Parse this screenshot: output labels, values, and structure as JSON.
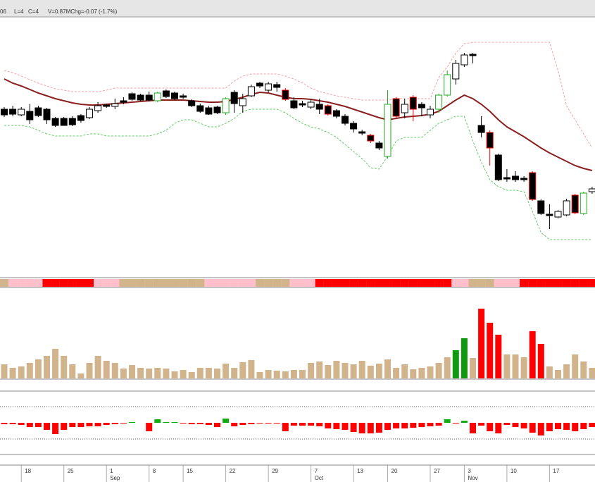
{
  "status": {
    "items": [
      "06",
      "L=4",
      "C=4",
      "V=0.87MChg=-0.07 (-1.7%)"
    ]
  },
  "chart_data": [
    {
      "type": "candlestick",
      "categories": [
        null,
        null,
        "18",
        null,
        null,
        null,
        null,
        "25",
        null,
        null,
        null,
        null,
        "1",
        null,
        null,
        null,
        null,
        "8",
        null,
        null,
        null,
        "15",
        null,
        null,
        null,
        null,
        "22",
        null,
        null,
        null,
        null,
        "29",
        null,
        null,
        null,
        null,
        "7",
        null,
        null,
        null,
        null,
        "13",
        null,
        null,
        null,
        "20",
        null,
        null,
        null,
        null,
        "27",
        null,
        null,
        null,
        "3",
        null,
        null,
        null,
        null,
        "10",
        null,
        null,
        null,
        null,
        "17",
        null,
        null,
        null,
        null,
        null
      ],
      "months": [
        null,
        null,
        null,
        null,
        null,
        null,
        null,
        null,
        null,
        null,
        null,
        null,
        "Sep",
        null,
        null,
        null,
        null,
        null,
        null,
        null,
        null,
        null,
        null,
        null,
        null,
        null,
        null,
        null,
        null,
        null,
        null,
        null,
        null,
        null,
        null,
        null,
        "Oct",
        null,
        null,
        null,
        null,
        null,
        null,
        null,
        null,
        null,
        null,
        null,
        null,
        null,
        null,
        null,
        null,
        null,
        "Nov",
        null,
        null,
        null,
        null,
        null,
        null,
        null,
        null,
        null,
        null,
        null,
        null,
        null,
        null,
        null
      ],
      "open": [
        245,
        245,
        237,
        242,
        247,
        245,
        232,
        232,
        232,
        236,
        233,
        243,
        251,
        249,
        257,
        267,
        265,
        265,
        257,
        271,
        268,
        264,
        257,
        250,
        247,
        248,
        240,
        269,
        250,
        264,
        282,
        272,
        280,
        272,
        257,
        253,
        248,
        252,
        250,
        243,
        235,
        225,
        213,
        208,
        197,
        178,
        260,
        240,
        262,
        252,
        237,
        245,
        265,
        288,
        308,
        323,
        222,
        212,
        180,
        148,
        150,
        147,
        155,
        115,
        96,
        92,
        95,
        123,
        97,
        128
      ],
      "high": [
        248,
        250,
        248,
        252,
        250,
        247,
        234,
        234,
        235,
        238,
        248,
        255,
        253,
        260,
        262,
        269,
        267,
        270,
        270,
        273,
        270,
        267,
        259,
        253,
        250,
        250,
        262,
        272,
        267,
        280,
        284,
        284,
        284,
        275,
        262,
        257,
        259,
        260,
        252,
        245,
        238,
        228,
        216,
        210,
        200,
        272,
        262,
        260,
        265,
        255,
        250,
        267,
        300,
        315,
        325,
        325,
        235,
        215,
        182,
        160,
        157,
        150,
        157,
        117,
        110,
        102,
        118,
        125,
        128,
        135
      ],
      "low": [
        234,
        235,
        235,
        224,
        234,
        224,
        220,
        222,
        221,
        226,
        231,
        240,
        247,
        245,
        252,
        257,
        257,
        256,
        255,
        261,
        258,
        260,
        248,
        240,
        237,
        238,
        237,
        240,
        240,
        262,
        275,
        269,
        270,
        257,
        245,
        248,
        245,
        238,
        236,
        232,
        222,
        212,
        208,
        197,
        187,
        175,
        233,
        232,
        228,
        235,
        232,
        240,
        263,
        280,
        305,
        310,
        205,
        165,
        143,
        142,
        142,
        142,
        115,
        95,
        75,
        90,
        93,
        96,
        95,
        125
      ],
      "close": [
        237,
        238,
        245,
        230,
        236,
        230,
        222,
        222,
        223,
        229,
        245,
        250,
        249,
        253,
        255,
        259,
        258,
        258,
        268,
        263,
        260,
        262,
        250,
        242,
        238,
        240,
        260,
        253,
        260,
        277,
        278,
        281,
        276,
        259,
        247,
        251,
        255,
        245,
        238,
        235,
        225,
        217,
        211,
        200,
        190,
        252,
        235,
        252,
        245,
        247,
        245,
        265,
        294,
        310,
        322,
        321,
        212,
        190,
        145,
        146,
        145,
        145,
        117,
        97,
        94,
        100,
        115,
        98,
        126,
        132
      ],
      "styles": [
        "d",
        "d",
        "u",
        "d",
        "d",
        "d",
        "d",
        "d",
        "d",
        "d",
        "u",
        "u",
        "d",
        "u",
        "d",
        "d",
        "d",
        "d",
        "ug",
        "d",
        "d",
        "d",
        "d",
        "d",
        "d",
        "d",
        "ug",
        "d",
        "u",
        "u",
        "d",
        "u",
        "d",
        "dr",
        "d",
        "d",
        "u",
        "d",
        "dr",
        "d",
        "d",
        "d",
        "d",
        "dr",
        "d",
        "ug",
        "dr",
        "u",
        "dr",
        "d",
        "u",
        "ug",
        "ug",
        "u",
        "u",
        "d",
        "d",
        "dr",
        "d",
        "d",
        "d",
        "d",
        "dr",
        "d",
        "d",
        "u",
        "u",
        "dr",
        "ug",
        "u"
      ],
      "style_colors": {
        "u": {
          "fill": "#ffffff",
          "stroke": "#000000"
        },
        "d": {
          "fill": "#000000",
          "stroke": "#000000"
        },
        "ug": {
          "fill": "#ffffff",
          "stroke": "#22aa22"
        },
        "dr": {
          "fill": "#000000",
          "stroke": "#ee0000"
        }
      },
      "ma": {
        "color": "#8b2020",
        "values": [
          288,
          282,
          278,
          273,
          268,
          264,
          260,
          257,
          254,
          252,
          251,
          251,
          252,
          253,
          254,
          255,
          256,
          257,
          258,
          258,
          258,
          258,
          257,
          256,
          255,
          255,
          256,
          259,
          262,
          266,
          269,
          268,
          265,
          262,
          260,
          260,
          259,
          257,
          255,
          252,
          249,
          245,
          241,
          237,
          233,
          230,
          232,
          234,
          235,
          236,
          238,
          242,
          250,
          258,
          265,
          260,
          252,
          242,
          230,
          220,
          213,
          206,
          198,
          190,
          183,
          177,
          171,
          165,
          161,
          158
        ]
      },
      "upper_band": {
        "color": "#f4a0a8",
        "values": [
          300,
          297,
          292,
          287,
          282,
          278,
          274,
          272,
          270,
          270,
          270,
          270,
          272,
          275,
          275,
          275,
          275,
          275,
          275,
          275,
          275,
          275,
          275,
          275,
          275,
          275,
          275,
          285,
          292,
          295,
          295,
          295,
          295,
          292,
          288,
          282,
          275,
          270,
          267,
          264,
          262,
          260,
          258,
          258,
          258,
          258,
          260,
          260,
          260,
          260,
          260,
          290,
          305,
          325,
          338,
          340,
          340,
          340,
          340,
          340,
          340,
          340,
          340,
          340,
          340,
          300,
          250,
          230,
          210,
          190
        ]
      },
      "lower_band": {
        "color": "#66cc66",
        "values": [
          222,
          222,
          222,
          220,
          215,
          210,
          207,
          207,
          207,
          207,
          210,
          210,
          207,
          207,
          207,
          207,
          207,
          207,
          210,
          215,
          225,
          230,
          230,
          225,
          220,
          220,
          225,
          232,
          242,
          245,
          245,
          245,
          245,
          240,
          232,
          225,
          220,
          217,
          212,
          205,
          195,
          185,
          175,
          162,
          160,
          178,
          200,
          205,
          205,
          205,
          215,
          225,
          230,
          235,
          235,
          200,
          170,
          145,
          135,
          130,
          130,
          128,
          100,
          70,
          60,
          60,
          60,
          60,
          60,
          60
        ]
      },
      "regime": [
        "t",
        "p",
        "p",
        "p",
        "p",
        "r",
        "r",
        "r",
        "r",
        "r",
        "r",
        "p",
        "p",
        "p",
        "t",
        "t",
        "t",
        "t",
        "t",
        "t",
        "t",
        "t",
        "t",
        "t",
        "p",
        "p",
        "p",
        "p",
        "p",
        "p",
        "t",
        "t",
        "t",
        "t",
        "p",
        "p",
        "p",
        "r",
        "r",
        "r",
        "r",
        "r",
        "r",
        "r",
        "r",
        "r",
        "r",
        "r",
        "r",
        "r",
        "r",
        "r",
        "r",
        "p",
        "p",
        "t",
        "t",
        "t",
        "p",
        "p",
        "p",
        "r",
        "r",
        "r",
        "r",
        "r",
        "r",
        "r",
        "r",
        "r"
      ],
      "regime_colors": {
        "t": "#d2b48c",
        "p": "#ffc0cb",
        "r": "#ff0000"
      },
      "ylim": [
        10,
        400
      ]
    },
    {
      "type": "bar",
      "values": [
        20,
        15,
        17,
        22,
        27,
        32,
        42,
        32,
        20,
        7,
        22,
        32,
        25,
        22,
        14,
        19,
        15,
        14,
        15,
        14,
        10,
        12,
        9,
        15,
        15,
        14,
        21,
        15,
        23,
        26,
        9,
        12,
        11,
        10,
        12,
        12,
        22,
        24,
        19,
        25,
        22,
        20,
        25,
        18,
        21,
        27,
        15,
        20,
        13,
        15,
        17,
        22,
        30,
        40,
        57,
        29,
        99,
        79,
        62,
        34,
        34,
        30,
        67,
        49,
        17,
        12,
        20,
        34,
        24,
        15
      ],
      "bar_colors": [
        "t",
        "t",
        "t",
        "t",
        "t",
        "t",
        "t",
        "t",
        "t",
        "t",
        "t",
        "t",
        "t",
        "t",
        "t",
        "t",
        "t",
        "t",
        "t",
        "t",
        "t",
        "t",
        "t",
        "t",
        "t",
        "t",
        "t",
        "t",
        "t",
        "t",
        "t",
        "t",
        "t",
        "t",
        "t",
        "t",
        "t",
        "t",
        "t",
        "t",
        "t",
        "t",
        "t",
        "t",
        "t",
        "t",
        "t",
        "t",
        "t",
        "t",
        "t",
        "t",
        "t",
        "g",
        "g",
        "t",
        "r",
        "r",
        "r",
        "t",
        "t",
        "t",
        "r",
        "r",
        "t",
        "t",
        "t",
        "t",
        "t",
        "t"
      ],
      "palette": {
        "t": "#d2b48c",
        "g": "#119911",
        "r": "#ff0000"
      },
      "ylim": [
        0,
        127
      ]
    },
    {
      "type": "histogram-osc",
      "values": [
        -2,
        -2,
        -3,
        -6,
        -6,
        -10,
        -16,
        -10,
        -6,
        -6,
        -5,
        -5,
        -3,
        -2,
        -1,
        1,
        0,
        -12,
        5,
        1,
        1,
        -1,
        -2,
        -2,
        -3,
        -6,
        6,
        -5,
        -3,
        -2,
        -1,
        -1,
        -1,
        -12,
        -4,
        -4,
        -4,
        -5,
        -8,
        -9,
        -10,
        -13,
        -15,
        -15,
        -14,
        -10,
        -8,
        -8,
        -7,
        -6,
        -5,
        -4,
        5,
        -1,
        3,
        -15,
        -4,
        -12,
        -15,
        -3,
        -6,
        -8,
        -14,
        -18,
        -12,
        -9,
        -10,
        -12,
        -9,
        -6
      ],
      "positive_color": "#11aa11",
      "negative_color": "#ff0000",
      "levels": [
        -23,
        23
      ],
      "ylim": [
        -45,
        45
      ]
    }
  ]
}
